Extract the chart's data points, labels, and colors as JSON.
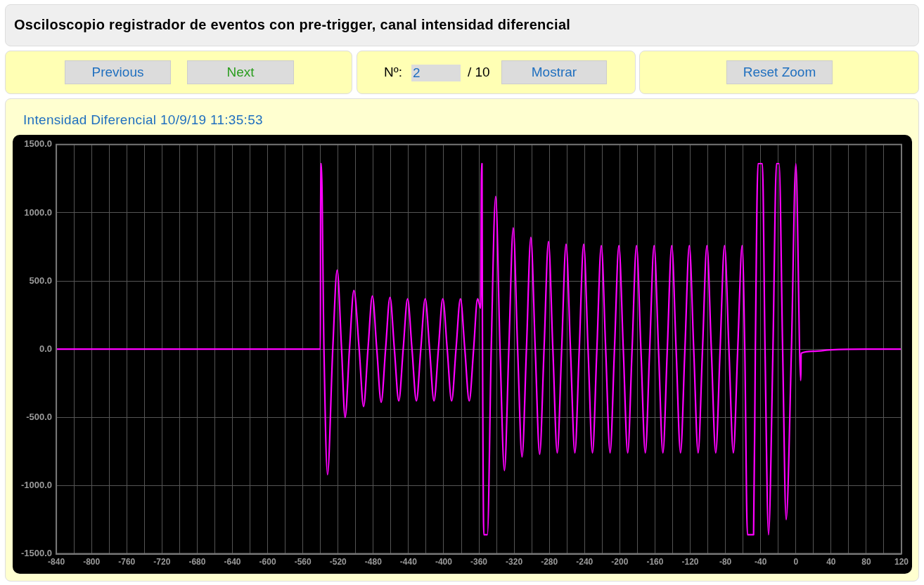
{
  "chart_data": {
    "type": "line",
    "title": "Osciloscopio registrador de eventos con pre-trigger, canal intensidad diferencial",
    "subtitle": "Intensidad Diferencial 10/9/19 11:35:53",
    "annotations": [
      "Previous",
      "Next",
      "Nº:",
      "2",
      "/ 10",
      "Mostrar",
      "Reset Zoom"
    ],
    "x": [
      -840,
      -540,
      -539.8,
      -539,
      -536,
      -532,
      -526,
      -521,
      -516,
      -512,
      -507,
      -502,
      -496,
      -491,
      -486,
      -481,
      -476,
      -471,
      -466,
      -461,
      -456,
      -451,
      -446,
      -441,
      -436,
      -431,
      -426,
      -421,
      -416,
      -411,
      -406,
      -401,
      -396,
      -391,
      -386,
      -381,
      -376,
      -371,
      -366,
      -361.5,
      -358,
      -357,
      -356.5,
      -356,
      -354.4,
      -350.4,
      -346,
      -341,
      -336,
      -331,
      -326,
      -321,
      -316,
      -311,
      -306,
      -301,
      -296,
      -291,
      -286,
      -281,
      -276,
      -271,
      -266,
      -261,
      -256,
      -251,
      -246,
      -241,
      -236,
      -231,
      -226,
      -221,
      -216,
      -211,
      -206,
      -201,
      -196,
      -191,
      -186,
      -181,
      -176,
      -171,
      -166,
      -161,
      -156,
      -151,
      -146,
      -141,
      -136,
      -131,
      -126,
      -121,
      -116,
      -111,
      -106,
      -101,
      -96,
      -91,
      -86,
      -81,
      -76,
      -71,
      -66,
      -61,
      -58,
      -55,
      -48,
      -46,
      -43,
      -38,
      -35,
      -31,
      -26,
      -22,
      -19,
      -15,
      -11,
      -5,
      0,
      5.6,
      6,
      20,
      40,
      80,
      120
    ],
    "series": [
      {
        "color": "#ff00ff",
        "values": [
          0,
          0,
          1360,
          1360,
          0,
          -920,
          0,
          580,
          0,
          -500,
          0,
          430,
          0,
          -420,
          0,
          390,
          0,
          -390,
          0,
          380,
          0,
          -380,
          0,
          370,
          0,
          -380,
          0,
          370,
          0,
          -380,
          0,
          370,
          0,
          -380,
          0,
          370,
          0,
          -380,
          0,
          370,
          300,
          1360,
          1360,
          210,
          -1360,
          -1360,
          0,
          1120,
          0,
          -890,
          0,
          890,
          0,
          -790,
          0,
          820,
          0,
          -770,
          0,
          790,
          0,
          -760,
          0,
          770,
          0,
          -760,
          0,
          770,
          0,
          -760,
          0,
          760,
          0,
          -760,
          0,
          760,
          0,
          -760,
          0,
          760,
          0,
          -760,
          0,
          760,
          0,
          -760,
          0,
          760,
          0,
          -760,
          0,
          760,
          0,
          -760,
          0,
          760,
          0,
          -760,
          0,
          760,
          0,
          -760,
          0,
          760,
          0,
          -1360,
          -1360,
          0,
          1360,
          1360,
          0,
          -1360,
          0,
          1360,
          1360,
          0,
          -1250,
          0,
          1360,
          -230,
          -30,
          -15,
          -5,
          0,
          0
        ]
      }
    ],
    "xlim": [
      -840,
      120
    ],
    "ylim": [
      -1500,
      1500
    ],
    "xticks": [
      -840,
      {
        "value": -820,
        "label": null
      },
      -800,
      {
        "value": -780,
        "label": null
      },
      -760,
      {
        "value": -740,
        "label": null
      },
      -720,
      {
        "value": -700,
        "label": null
      },
      -680,
      {
        "value": -660,
        "label": null
      },
      -640,
      {
        "value": -620,
        "label": null
      },
      -600,
      {
        "value": -580,
        "label": null
      },
      -560,
      {
        "value": -540,
        "label": null
      },
      -520,
      {
        "value": -500,
        "label": null
      },
      -480,
      {
        "value": -460,
        "label": null
      },
      -440,
      {
        "value": -420,
        "label": null
      },
      -400,
      {
        "value": -380,
        "label": null
      },
      -360,
      {
        "value": -340,
        "label": null
      },
      -320,
      {
        "value": -300,
        "label": null
      },
      -280,
      {
        "value": -260,
        "label": null
      },
      -240,
      {
        "value": -220,
        "label": null
      },
      -200,
      {
        "value": -180,
        "label": null
      },
      -160,
      {
        "value": -140,
        "label": null
      },
      -120,
      {
        "value": -100,
        "label": null
      },
      -80,
      {
        "value": -60,
        "label": null
      },
      -40,
      {
        "value": -20,
        "label": null
      },
      0,
      {
        "value": 20,
        "label": null
      },
      40,
      {
        "value": 60,
        "label": null
      },
      80,
      {
        "value": 100,
        "label": null
      },
      120
    ],
    "yticks": [
      {
        "value": -1500,
        "label": "-1500.0"
      },
      {
        "value": -1000,
        "label": "-1000.0"
      },
      {
        "value": -500,
        "label": "-500.0"
      },
      {
        "value": 0,
        "label": "0.0"
      },
      {
        "value": 500,
        "label": "500.0"
      },
      {
        "value": 1000,
        "label": "1000.0"
      },
      {
        "value": 1500,
        "label": "1500.0"
      }
    ],
    "grid": true,
    "legend": false,
    "marker": "none",
    "line_style": "solid"
  }
}
